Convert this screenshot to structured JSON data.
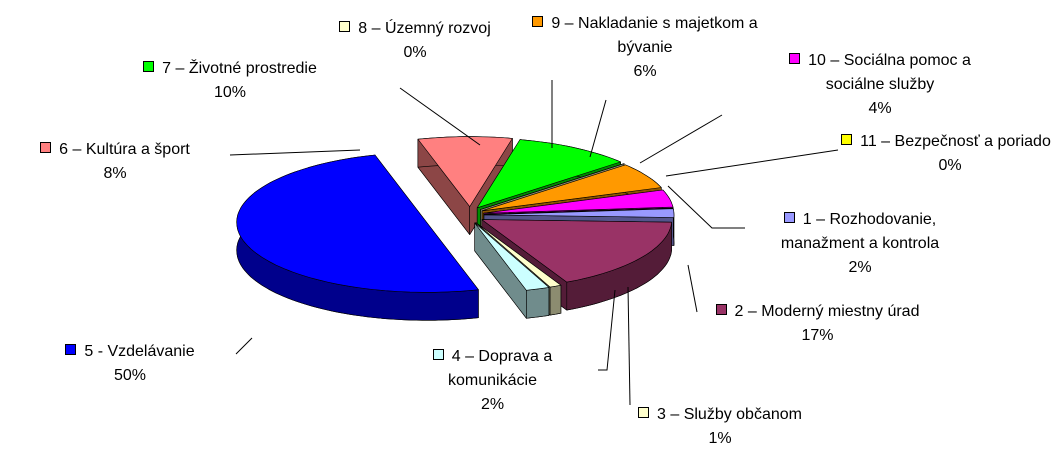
{
  "chart_data": {
    "type": "pie3d",
    "categories": [
      "1 – Rozhodovanie, manažment a kontrola",
      "2 – Moderný miestny úrad",
      "3 – Služby občanom",
      "4 – Doprava a komunikácie",
      "5 - Vzdelávanie",
      "6 – Kultúra a šport",
      "7 – Životné prostredie",
      "8 – Územný rozvoj",
      "9 – Nakladanie s majetkom a bývanie",
      "10 – Sociálna pomoc a sociálne služby",
      "11 – Bezpečnosť a poriadok"
    ],
    "values": [
      2,
      17,
      1,
      2,
      50,
      8,
      10,
      0,
      6,
      4,
      0
    ],
    "value_labels": [
      "2%",
      "17%",
      "1%",
      "2%",
      "50%",
      "8%",
      "10%",
      "0%",
      "6%",
      "4%",
      "0%"
    ],
    "colors": [
      "#9999ff",
      "#993366",
      "#ffffcc",
      "#ccffff",
      "#0000ff",
      "#ff8080",
      "#00ff00",
      "#ffffcc",
      "#ff9900",
      "#ff00ff",
      "#ffff00"
    ]
  }
}
